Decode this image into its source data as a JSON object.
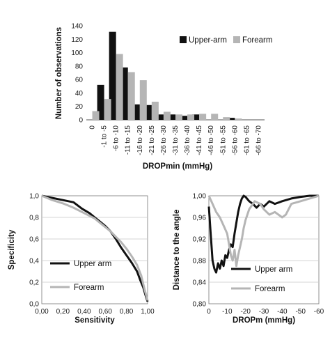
{
  "chart_data": [
    {
      "type": "bar",
      "categories": [
        "0",
        "-1 to -5",
        "-6 to -10",
        "-11 to -15",
        "-16 to -20",
        "-21 to -25",
        "-26 to -30",
        "-31 to -35",
        "-36 to -40",
        "-41 to -45",
        "-46 to -50",
        "-51 to -55",
        "-56 to -60",
        "-61 to -65",
        "-66 to -70"
      ],
      "series": [
        {
          "name": "Upper-arm",
          "color": "#111111",
          "values": [
            0,
            52,
            131,
            78,
            23,
            22,
            8,
            8,
            6,
            8,
            0,
            0,
            3,
            0,
            0
          ]
        },
        {
          "name": "Forearm",
          "color": "#b5b5b5",
          "values": [
            13,
            31,
            98,
            71,
            59,
            27,
            12,
            8,
            8,
            9,
            9,
            4,
            2,
            0,
            0
          ]
        }
      ],
      "xlabel": "DROPmin (mmHg)",
      "ylabel": "Number of observations",
      "yticks": [
        "0",
        "20",
        "40",
        "60",
        "80",
        "100",
        "120",
        "140"
      ],
      "ylim": [
        0,
        140
      ],
      "legend": "top-right"
    },
    {
      "type": "line",
      "xlabel": "Sensitivity",
      "ylabel": "Specificity",
      "xticks": [
        "0,00",
        "0,20",
        "0,40",
        "0,60",
        "0,80",
        "1,00"
      ],
      "yticks": [
        "0,0",
        "0,2",
        "0,4",
        "0,6",
        "0,8",
        "1,0"
      ],
      "xlim": [
        0,
        1
      ],
      "ylim": [
        0,
        1
      ],
      "legend": "bottom-left",
      "series": [
        {
          "name": "Upper arm",
          "color": "#111111",
          "x": [
            0.0,
            0.05,
            0.1,
            0.2,
            0.3,
            0.38,
            0.45,
            0.5,
            0.55,
            0.6,
            0.65,
            0.7,
            0.75,
            0.8,
            0.85,
            0.9,
            0.93,
            0.96,
            0.98,
            1.0
          ],
          "y": [
            1.0,
            0.99,
            0.98,
            0.96,
            0.94,
            0.88,
            0.84,
            0.8,
            0.76,
            0.72,
            0.67,
            0.6,
            0.52,
            0.45,
            0.38,
            0.3,
            0.22,
            0.15,
            0.08,
            0.02
          ]
        },
        {
          "name": "Forearm",
          "color": "#b5b5b5",
          "x": [
            0.0,
            0.05,
            0.1,
            0.2,
            0.3,
            0.4,
            0.5,
            0.55,
            0.6,
            0.65,
            0.7,
            0.75,
            0.8,
            0.85,
            0.9,
            0.94,
            0.97,
            1.0
          ],
          "y": [
            1.0,
            0.98,
            0.96,
            0.93,
            0.89,
            0.84,
            0.79,
            0.75,
            0.71,
            0.67,
            0.62,
            0.57,
            0.51,
            0.44,
            0.36,
            0.26,
            0.14,
            0.03
          ]
        }
      ]
    },
    {
      "type": "line",
      "xlabel": "DROPm (mmHg)",
      "ylabel": "Distance to the angle",
      "xticks": [
        "0",
        "-10",
        "-20",
        "-30",
        "-40",
        "-50",
        "-60"
      ],
      "yticks": [
        "0,80",
        "0,84",
        "0,88",
        "0,92",
        "0,96",
        "1,00"
      ],
      "xlim": [
        0,
        -60
      ],
      "ylim": [
        0.8,
        1.0
      ],
      "legend": "bottom-right",
      "series": [
        {
          "name": "Upper arm",
          "color": "#111111",
          "x": [
            0,
            -1,
            -2,
            -3,
            -4,
            -5,
            -6,
            -7,
            -8,
            -9,
            -10,
            -11,
            -12,
            -13,
            -14,
            -15,
            -16,
            -17,
            -18,
            -19,
            -20,
            -22,
            -24,
            -26,
            -28,
            -30,
            -33,
            -36,
            -40,
            -45,
            -50,
            -55,
            -60
          ],
          "y": [
            0.98,
            0.93,
            0.88,
            0.865,
            0.858,
            0.875,
            0.865,
            0.88,
            0.87,
            0.89,
            0.885,
            0.9,
            0.91,
            0.905,
            0.93,
            0.95,
            0.97,
            0.985,
            0.995,
            1.0,
            0.998,
            0.99,
            0.985,
            0.978,
            0.985,
            0.98,
            0.99,
            0.985,
            0.99,
            0.995,
            0.998,
            1.0,
            1.0
          ]
        },
        {
          "name": "Forearm",
          "color": "#b5b5b5",
          "x": [
            0,
            -2,
            -4,
            -6,
            -8,
            -10,
            -11,
            -12,
            -13,
            -14,
            -15,
            -16,
            -17,
            -18,
            -19,
            -20,
            -22,
            -25,
            -28,
            -30,
            -33,
            -36,
            -40,
            -42,
            -45,
            -50,
            -55,
            -60
          ],
          "y": [
            1.0,
            0.985,
            0.97,
            0.96,
            0.945,
            0.93,
            0.91,
            0.89,
            0.88,
            0.9,
            0.87,
            0.89,
            0.905,
            0.92,
            0.94,
            0.955,
            0.975,
            0.99,
            0.985,
            0.975,
            0.965,
            0.97,
            0.96,
            0.965,
            0.985,
            0.99,
            0.995,
            1.0
          ]
        }
      ]
    }
  ]
}
